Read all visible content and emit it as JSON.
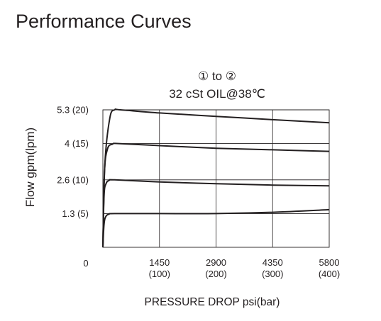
{
  "page": {
    "title": "Performance Curves"
  },
  "chart_data": {
    "type": "line",
    "title": "① to ②",
    "subtitle": "32 cSt OIL@38℃",
    "xlabel": "PRESSURE DROP psi(bar)",
    "ylabel": "Flow gpm(lpm)",
    "xlim": [
      0,
      5800
    ],
    "ylim": [
      0,
      5.8
    ],
    "grid": true,
    "x_ticks": [
      {
        "value": 1450,
        "label": "1450",
        "sublabel": "(100)"
      },
      {
        "value": 2900,
        "label": "2900",
        "sublabel": "(200)"
      },
      {
        "value": 4350,
        "label": "4350",
        "sublabel": "(300)"
      },
      {
        "value": 5800,
        "label": "5800",
        "sublabel": "(400)"
      }
    ],
    "origin_label": "0",
    "y_ticks": [
      {
        "value": 1.3,
        "label": "1.3 (5)"
      },
      {
        "value": 2.6,
        "label": "2.6 (10)"
      },
      {
        "value": 4.0,
        "label": "4 (15)"
      },
      {
        "value": 5.3,
        "label": "5.3 (20)"
      }
    ],
    "series": [
      {
        "x": [
          0,
          30,
          80,
          160,
          300,
          1450,
          2900,
          4350,
          5800
        ],
        "y": [
          0,
          0.9,
          1.2,
          1.28,
          1.3,
          1.3,
          1.3,
          1.35,
          1.45
        ]
      },
      {
        "x": [
          0,
          30,
          80,
          160,
          300,
          1450,
          2900,
          4350,
          5800
        ],
        "y": [
          0,
          2.0,
          2.45,
          2.58,
          2.6,
          2.52,
          2.45,
          2.4,
          2.37
        ]
      },
      {
        "x": [
          0,
          40,
          120,
          250,
          400,
          1450,
          2900,
          4350,
          5800
        ],
        "y": [
          0,
          2.9,
          3.8,
          3.98,
          4.0,
          3.92,
          3.82,
          3.76,
          3.7
        ]
      },
      {
        "x": [
          0,
          50,
          180,
          300,
          450,
          1450,
          2900,
          4350,
          5800
        ],
        "y": [
          0,
          3.2,
          5.0,
          5.3,
          5.3,
          5.18,
          5.05,
          4.92,
          4.8
        ]
      }
    ]
  }
}
